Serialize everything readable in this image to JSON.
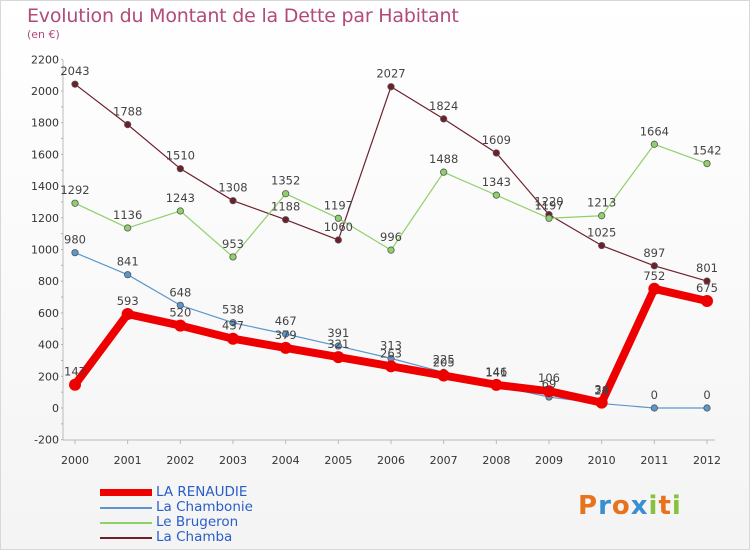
{
  "title": "Evolution du Montant de la Dette par Habitant",
  "subtitle": "(en €)",
  "logo": {
    "text": "Proxiti",
    "letters": [
      "P",
      "r",
      "o",
      "x",
      "i",
      "t",
      "i"
    ],
    "colors": [
      "#e8731d",
      "#3a8fd0",
      "#e8731d",
      "#3a8fd0",
      "#86c33a",
      "#e8731d",
      "#86c33a"
    ]
  },
  "chart_data": {
    "type": "line",
    "x": [
      "2000",
      "2001",
      "2002",
      "2003",
      "2004",
      "2005",
      "2006",
      "2007",
      "2008",
      "2009",
      "2010",
      "2011",
      "2012"
    ],
    "yticks": [
      "-200",
      "0",
      "200",
      "400",
      "600",
      "800",
      "1000",
      "1200",
      "1400",
      "1600",
      "1800",
      "2000",
      "2200"
    ],
    "ylim": [
      -200,
      2200
    ],
    "grid": false,
    "legend_position": "bottom-left",
    "series": [
      {
        "name": "La Chamba",
        "color": "#6e1f2a",
        "width": 1.2,
        "values": [
          2043,
          1788,
          1510,
          1308,
          1188,
          1060,
          2027,
          1824,
          1609,
          1220,
          1025,
          897,
          801
        ],
        "labels": [
          "2043",
          "1788",
          "1510",
          "1308",
          "1188",
          "1060",
          "2027",
          "1824",
          "1609",
          "1220",
          "1025",
          "897",
          "801"
        ]
      },
      {
        "name": "Le Brugeron",
        "color": "#8fd06a",
        "width": 1.2,
        "values": [
          1292,
          1136,
          1243,
          953,
          1352,
          1197,
          996,
          1488,
          1343,
          1197,
          1213,
          1664,
          1542
        ],
        "labels": [
          "1292",
          "1136",
          "1243",
          "953",
          "1352",
          "1197",
          "996",
          "1488",
          "1343",
          "1197",
          "1213",
          "1664",
          "1542"
        ]
      },
      {
        "name": "La Chambonie",
        "color": "#5b97cc",
        "width": 1.2,
        "values": [
          980,
          841,
          648,
          538,
          467,
          391,
          313,
          225,
          141,
          69,
          28,
          0,
          0
        ],
        "labels": [
          "980",
          "841",
          "648",
          "538",
          "467",
          "391",
          "313",
          "225",
          "141",
          "69",
          "28",
          "0",
          "0"
        ]
      },
      {
        "name": "LA RENAUDIE",
        "color": "#ee0000",
        "width": 8,
        "values": [
          147,
          593,
          520,
          437,
          379,
          321,
          263,
          205,
          146,
          106,
          34,
          752,
          675
        ],
        "labels": [
          "147",
          "593",
          "520",
          "437",
          "379",
          "321",
          "263",
          "205",
          "146",
          "106",
          "34",
          "752",
          "675"
        ]
      }
    ],
    "legend": [
      {
        "name": "LA RENAUDIE",
        "color": "#ee0000",
        "thick": true
      },
      {
        "name": "La Chambonie",
        "color": "#5b97cc",
        "thick": false
      },
      {
        "name": "Le Brugeron",
        "color": "#8fd06a",
        "thick": false
      },
      {
        "name": "La Chamba",
        "color": "#6e1f2a",
        "thick": false
      }
    ]
  }
}
